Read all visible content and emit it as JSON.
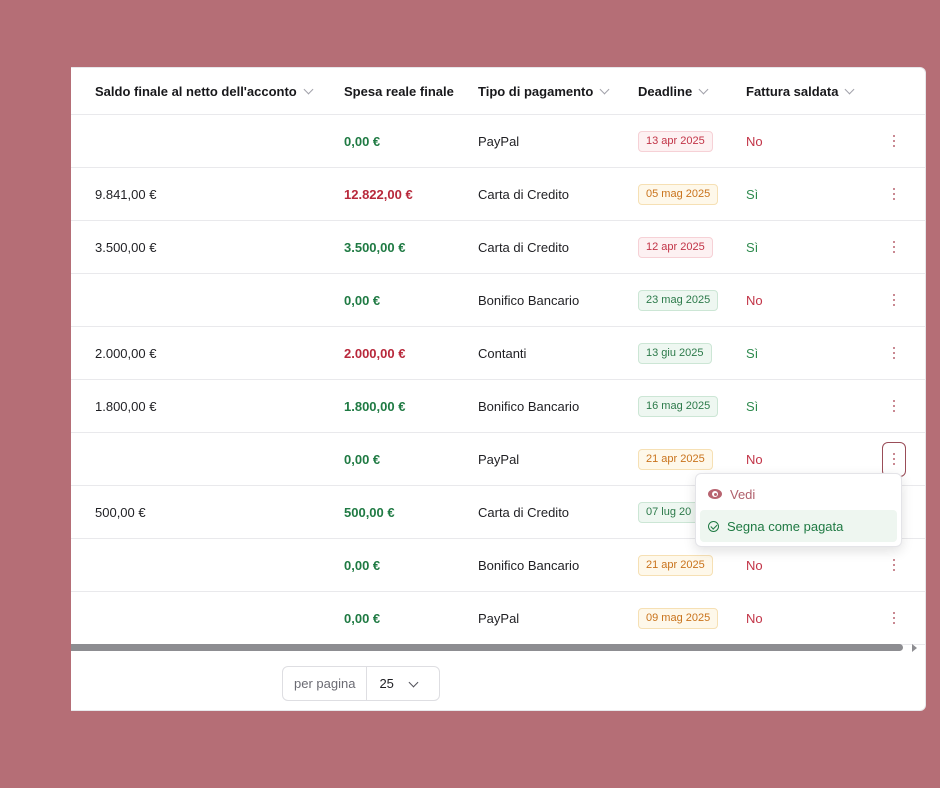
{
  "table": {
    "headers": {
      "saldo": "Saldo finale al netto dell'acconto",
      "spesa": "Spesa reale finale",
      "tipo": "Tipo di pagamento",
      "deadline": "Deadline",
      "fattura": "Fattura saldata"
    },
    "rows": [
      {
        "saldo": "",
        "spesa": "0,00 €",
        "spesa_color": "green",
        "tipo": "PayPal",
        "deadline": "13 apr 2025",
        "deadline_color": "red",
        "fattura": "No"
      },
      {
        "saldo": "9.841,00 €",
        "spesa": "12.822,00 €",
        "spesa_color": "red",
        "tipo": "Carta di Credito",
        "deadline": "05 mag 2025",
        "deadline_color": "orange",
        "fattura": "Sì"
      },
      {
        "saldo": "3.500,00 €",
        "spesa": "3.500,00 €",
        "spesa_color": "green",
        "tipo": "Carta di Credito",
        "deadline": "12 apr 2025",
        "deadline_color": "red",
        "fattura": "Sì"
      },
      {
        "saldo": "",
        "spesa": "0,00 €",
        "spesa_color": "green",
        "tipo": "Bonifico Bancario",
        "deadline": "23 mag 2025",
        "deadline_color": "green",
        "fattura": "No"
      },
      {
        "saldo": "2.000,00 €",
        "spesa": "2.000,00 €",
        "spesa_color": "red",
        "tipo": "Contanti",
        "deadline": "13 giu 2025",
        "deadline_color": "green",
        "fattura": "Sì"
      },
      {
        "saldo": "1.800,00 €",
        "spesa": "1.800,00 €",
        "spesa_color": "green",
        "tipo": "Bonifico Bancario",
        "deadline": "16 mag 2025",
        "deadline_color": "green",
        "fattura": "Sì"
      },
      {
        "saldo": "",
        "spesa": "0,00 €",
        "spesa_color": "green",
        "tipo": "PayPal",
        "deadline": "21 apr 2025",
        "deadline_color": "orange",
        "fattura": "No"
      },
      {
        "saldo": "500,00 €",
        "spesa": "500,00 €",
        "spesa_color": "green",
        "tipo": "Carta di Credito",
        "deadline": "07 lug 20",
        "deadline_color": "green",
        "fattura": ""
      },
      {
        "saldo": "",
        "spesa": "0,00 €",
        "spesa_color": "green",
        "tipo": "Bonifico Bancario",
        "deadline": "21 apr 2025",
        "deadline_color": "orange",
        "fattura": "No"
      },
      {
        "saldo": "",
        "spesa": "0,00 €",
        "spesa_color": "green",
        "tipo": "PayPal",
        "deadline": "09 mag 2025",
        "deadline_color": "orange",
        "fattura": "No"
      }
    ],
    "active_row_index": 6
  },
  "menu": {
    "view_label": "Vedi",
    "mark_paid_label": "Segna come pagata"
  },
  "pagination": {
    "per_page_label": "per pagina",
    "per_page_value": "25"
  },
  "colors": {
    "background": "#b56e76",
    "green": "#1f7a43",
    "red": "#b8283b",
    "accent": "#b86470"
  }
}
